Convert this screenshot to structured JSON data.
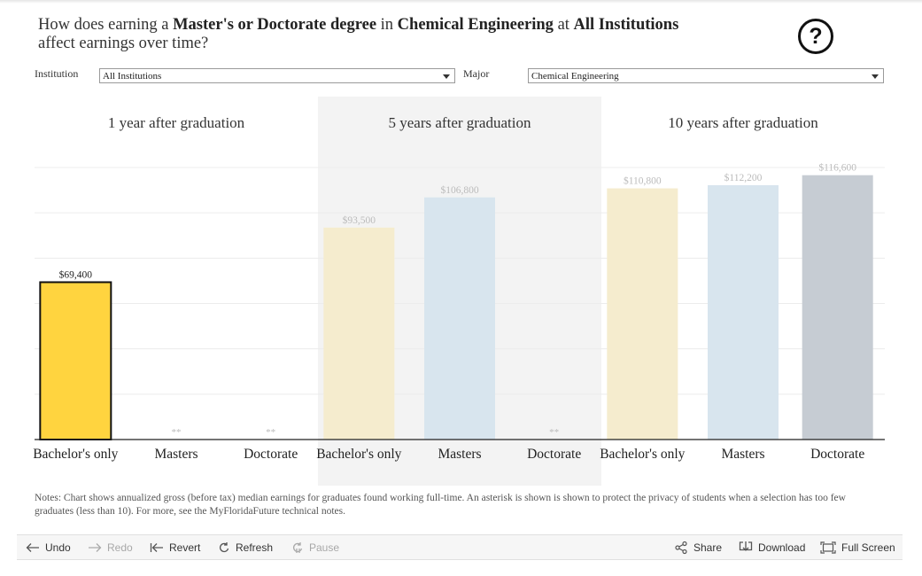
{
  "title": {
    "p1": "How does earning a ",
    "degree": "Master's or Doctorate degree",
    "p2": " in ",
    "major": "Chemical Engineering",
    "p3": " at ",
    "institution": "All Institutions",
    "line2": "affect earnings over time?"
  },
  "help_icon": "question-mark-circle-icon",
  "filters": {
    "institution_label": "Institution",
    "institution_value": "All Institutions",
    "major_label": "Major",
    "major_value": "Chemical Engineering"
  },
  "chart_data": {
    "type": "bar",
    "panels": [
      {
        "title": "1 year after graduation",
        "categories": [
          "Bachelor's only",
          "Masters",
          "Doctorate"
        ],
        "values": [
          69400,
          null,
          null
        ],
        "labels": [
          "$69,400",
          "**",
          "**"
        ],
        "highlighted": true
      },
      {
        "title": "5 years after graduation",
        "categories": [
          "Bachelor's only",
          "Masters",
          "Doctorate"
        ],
        "values": [
          93500,
          106800,
          null
        ],
        "labels": [
          "$93,500",
          "$106,800",
          "**"
        ],
        "highlighted": false
      },
      {
        "title": "10 years after graduation",
        "categories": [
          "Bachelor's only",
          "Masters",
          "Doctorate"
        ],
        "values": [
          110800,
          112200,
          116600
        ],
        "labels": [
          "$110,800",
          "$112,200",
          "$116,600"
        ],
        "highlighted": false
      }
    ],
    "ylim": [
      0,
      120000
    ],
    "grid": true,
    "colors": {
      "bachelors_highlight": "#ffd43f",
      "bachelors": "#f5ecce",
      "masters": "#d8e5ee",
      "doctorate": "#c6ccd3",
      "panel_band": "#f3f3f3"
    }
  },
  "notes": "Notes: Chart shows annualized gross (before tax) median earnings for graduates found working full-time. An asterisk is shown is shown to protect the privacy of students when a selection has too few graduates (less than 10).  For more, see the MyFloridaFuture technical notes.",
  "toolbar": {
    "undo": "Undo",
    "redo": "Redo",
    "revert": "Revert",
    "refresh": "Refresh",
    "pause": "Pause",
    "share": "Share",
    "download": "Download",
    "fullscreen": "Full Screen"
  }
}
